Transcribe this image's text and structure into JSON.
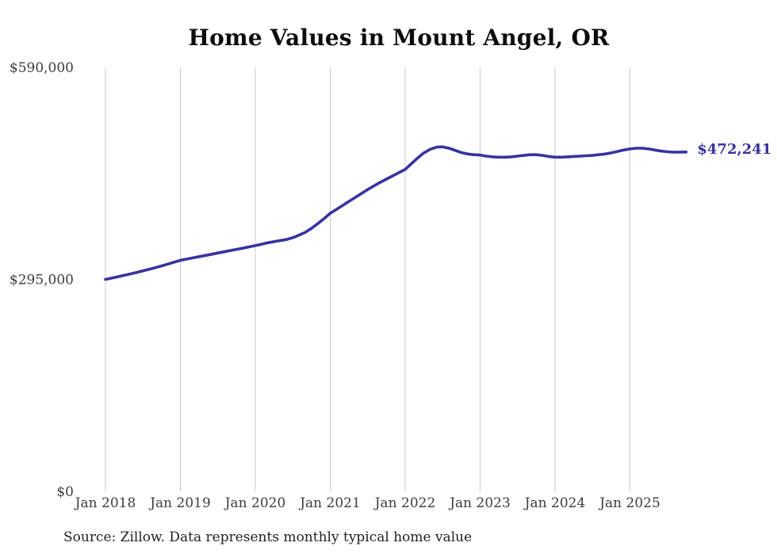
{
  "page": {
    "title": "Home Values in Mount Angel, OR",
    "source_note": "Source: Zillow. Data represents monthly typical home value"
  },
  "chart_data": {
    "type": "line",
    "title": "Home Values in Mount Angel, OR",
    "series_name": "Monthly typical home value",
    "frequency": "monthly",
    "x_start": "Jan 2018",
    "x_end": "Oct 2025",
    "x_tick_labels": [
      "Jan 2018",
      "Jan 2019",
      "Jan 2020",
      "Jan 2021",
      "Jan 2022",
      "Jan 2023",
      "Jan 2024",
      "Jan 2025"
    ],
    "x_tick_month_indices": [
      0,
      12,
      24,
      36,
      48,
      60,
      72,
      84
    ],
    "y_ticks": [
      {
        "value": 0,
        "label": "$0"
      },
      {
        "value": 295000,
        "label": "$295,000"
      },
      {
        "value": 590000,
        "label": "$590,000"
      }
    ],
    "ylim": [
      0,
      590000
    ],
    "grid": "vertical-only",
    "legend": "none",
    "end_label": "$472,241",
    "final_value": 472241,
    "line_color": "#38329f",
    "grid_color": "#c9c9c9",
    "values": [
      295000,
      296800,
      298700,
      300600,
      302600,
      304700,
      306900,
      309100,
      311300,
      313800,
      316300,
      318900,
      321500,
      323200,
      324900,
      326600,
      328300,
      330000,
      331700,
      333400,
      335100,
      336800,
      338500,
      340200,
      342000,
      344000,
      346000,
      347500,
      349000,
      350500,
      353000,
      356500,
      360500,
      366000,
      372500,
      379500,
      387000,
      392500,
      398000,
      403500,
      409000,
      414500,
      420000,
      425000,
      430000,
      434500,
      439000,
      443500,
      448000,
      456000,
      464000,
      471000,
      476000,
      479000,
      479500,
      477500,
      474500,
      471500,
      469500,
      468500,
      468000,
      466500,
      465500,
      465000,
      465000,
      465500,
      466500,
      467500,
      468500,
      468500,
      467500,
      466000,
      465000,
      465000,
      465500,
      466000,
      466500,
      467000,
      467500,
      468500,
      469500,
      471000,
      473000,
      475000,
      476500,
      477500,
      477500,
      476500,
      475000,
      473500,
      472500,
      472000,
      472100,
      472241
    ]
  }
}
